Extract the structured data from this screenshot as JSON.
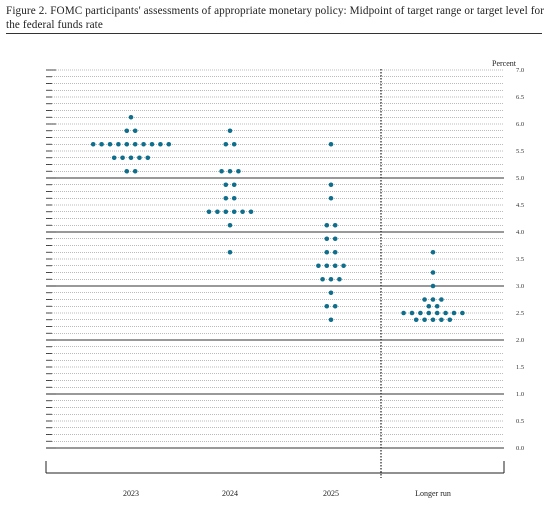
{
  "caption": "Figure 2. FOMC participants' assessments of appropriate monetary policy: Midpoint of target range or target level for the federal funds rate",
  "colors": {
    "dot": "#0f6e8c",
    "axis": "#222222",
    "solid_line": "#333333",
    "dotted_line": "#555555"
  },
  "chart_data": {
    "type": "scatter",
    "subtype": "dot-plot",
    "title": "",
    "ylabel": "Percent",
    "ylim": [
      0,
      7
    ],
    "y_ticks": [
      "0.0",
      "0.5",
      "1.0",
      "1.5",
      "2.0",
      "2.5",
      "3.0",
      "3.5",
      "4.0",
      "4.5",
      "5.0",
      "5.5",
      "6.0",
      "6.5",
      "7.0"
    ],
    "solid_lines_at": [
      0,
      1,
      2,
      3,
      4,
      5
    ],
    "categories": [
      "2023",
      "2024",
      "2025",
      "Longer run"
    ],
    "divider_before": "Longer run",
    "grid": true,
    "series": [
      {
        "category": "2023",
        "dots": [
          {
            "y": 6.125,
            "count": 1
          },
          {
            "y": 5.875,
            "count": 2
          },
          {
            "y": 5.625,
            "count": 10
          },
          {
            "y": 5.375,
            "count": 5
          },
          {
            "y": 5.125,
            "count": 2
          }
        ]
      },
      {
        "category": "2024",
        "dots": [
          {
            "y": 5.875,
            "count": 1
          },
          {
            "y": 5.625,
            "count": 2
          },
          {
            "y": 5.125,
            "count": 3
          },
          {
            "y": 4.875,
            "count": 2
          },
          {
            "y": 4.625,
            "count": 2
          },
          {
            "y": 4.375,
            "count": 6
          },
          {
            "y": 4.125,
            "count": 1
          },
          {
            "y": 3.625,
            "count": 1
          }
        ]
      },
      {
        "category": "2025",
        "dots": [
          {
            "y": 5.625,
            "count": 1
          },
          {
            "y": 4.875,
            "count": 1
          },
          {
            "y": 4.625,
            "count": 1
          },
          {
            "y": 4.125,
            "count": 2
          },
          {
            "y": 3.875,
            "count": 2
          },
          {
            "y": 3.625,
            "count": 2
          },
          {
            "y": 3.375,
            "count": 4
          },
          {
            "y": 3.125,
            "count": 3
          },
          {
            "y": 2.875,
            "count": 1
          },
          {
            "y": 2.625,
            "count": 2
          },
          {
            "y": 2.375,
            "count": 1
          }
        ]
      },
      {
        "category": "Longer run",
        "dots": [
          {
            "y": 3.625,
            "count": 1
          },
          {
            "y": 3.25,
            "count": 1
          },
          {
            "y": 3.0,
            "count": 1
          },
          {
            "y": 2.75,
            "count": 3
          },
          {
            "y": 2.625,
            "count": 2
          },
          {
            "y": 2.5,
            "count": 8
          },
          {
            "y": 2.375,
            "count": 5
          }
        ]
      }
    ]
  }
}
